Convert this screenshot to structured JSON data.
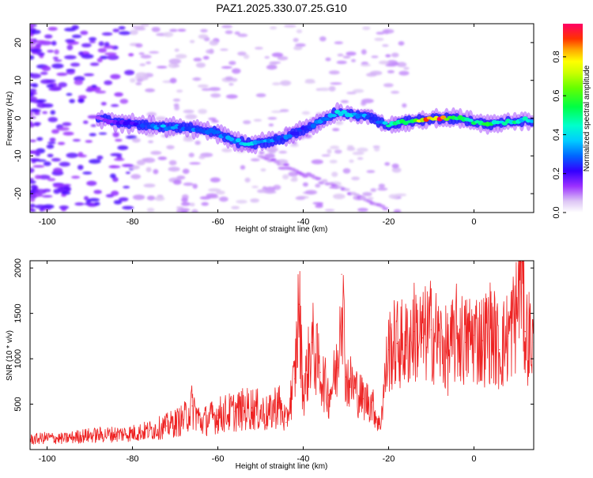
{
  "chart_data": [
    {
      "type": "heatmap",
      "title": "PAZ1.2025.330.07.25.G10",
      "xlabel": "Height of straight line (km)",
      "ylabel": "Frequency (Hz)",
      "xlim": [
        -104,
        14
      ],
      "ylim": [
        -25,
        25
      ],
      "x_ticks": [
        -100,
        -80,
        -60,
        -40,
        -20,
        0
      ],
      "x_tick_labels": [
        "-100",
        "-80",
        "-60",
        "-40",
        "-20",
        "0"
      ],
      "y_ticks": [
        -20,
        -10,
        0,
        10,
        20
      ],
      "y_tick_labels": [
        "-20",
        "-10",
        "0",
        "10",
        "20"
      ],
      "colorbar": {
        "label": "Normalized spectral amplitude",
        "range": [
          0,
          0.97
        ],
        "ticks": [
          0,
          0.2,
          0.4,
          0.6,
          0.8
        ],
        "tick_labels": [
          "0.0",
          "0.2",
          "0.4",
          "0.6",
          "0.8"
        ]
      },
      "ridge": {
        "x": [
          -88,
          -84,
          -80,
          -76,
          -72,
          -68,
          -64,
          -60,
          -56,
          -52,
          -48,
          -44,
          -40,
          -36,
          -32,
          -28,
          -24,
          -20,
          -16,
          -12,
          -8,
          -4,
          0,
          4,
          8,
          12,
          14
        ],
        "freq": [
          0,
          -1,
          -1.5,
          -2,
          -2.5,
          -2.5,
          -3,
          -4,
          -6,
          -7,
          -6,
          -5,
          -3,
          -1,
          1.5,
          1,
          0,
          -2,
          -1,
          -0.5,
          0,
          0,
          -1,
          -1.5,
          -1,
          -0.5,
          -1
        ],
        "amplitude": [
          0.12,
          0.18,
          0.22,
          0.3,
          0.35,
          0.3,
          0.3,
          0.32,
          0.38,
          0.4,
          0.35,
          0.3,
          0.28,
          0.33,
          0.42,
          0.36,
          0.3,
          0.45,
          0.55,
          0.8,
          0.92,
          0.6,
          0.5,
          0.55,
          0.5,
          0.45,
          0.4
        ]
      }
    },
    {
      "type": "line",
      "title": "",
      "xlabel": "Height of straight line (km)",
      "ylabel": "SNR (10 * v/v)",
      "xlim": [
        -104,
        14
      ],
      "ylim": [
        0,
        2080
      ],
      "x_ticks": [
        -100,
        -80,
        -60,
        -40,
        -20,
        0
      ],
      "x_tick_labels": [
        "-100",
        "-80",
        "-60",
        "-40",
        "-20",
        "0"
      ],
      "y_ticks": [
        500,
        1000,
        1500,
        2000
      ],
      "y_tick_labels": [
        "500",
        "1000",
        "1500",
        "2000"
      ],
      "color": "#ee2222",
      "series": [
        {
          "name": "SNR",
          "x": [
            -104,
            -100,
            -96,
            -92,
            -88,
            -84,
            -80,
            -76,
            -72,
            -68,
            -66,
            -64,
            -60,
            -56,
            -52,
            -48,
            -46,
            -44,
            -42,
            -41,
            -40,
            -38,
            -36,
            -34,
            -32,
            -31,
            -30,
            -28,
            -26,
            -24,
            -22,
            -21,
            -20,
            -18,
            -16,
            -14,
            -12,
            -10,
            -8,
            -6,
            -4,
            -2,
            0,
            2,
            4,
            6,
            8,
            10,
            11,
            12,
            14
          ],
          "values": [
            110,
            130,
            120,
            150,
            160,
            170,
            180,
            210,
            260,
            330,
            480,
            300,
            380,
            420,
            460,
            380,
            520,
            300,
            780,
            1600,
            600,
            1180,
            850,
            600,
            900,
            1930,
            800,
            680,
            560,
            520,
            250,
            700,
            1100,
            1170,
            1150,
            1300,
            1230,
            1320,
            1180,
            1060,
            1280,
            1180,
            1260,
            1200,
            1320,
            1100,
            1250,
            1500,
            2060,
            1300,
            1180
          ]
        }
      ]
    }
  ]
}
